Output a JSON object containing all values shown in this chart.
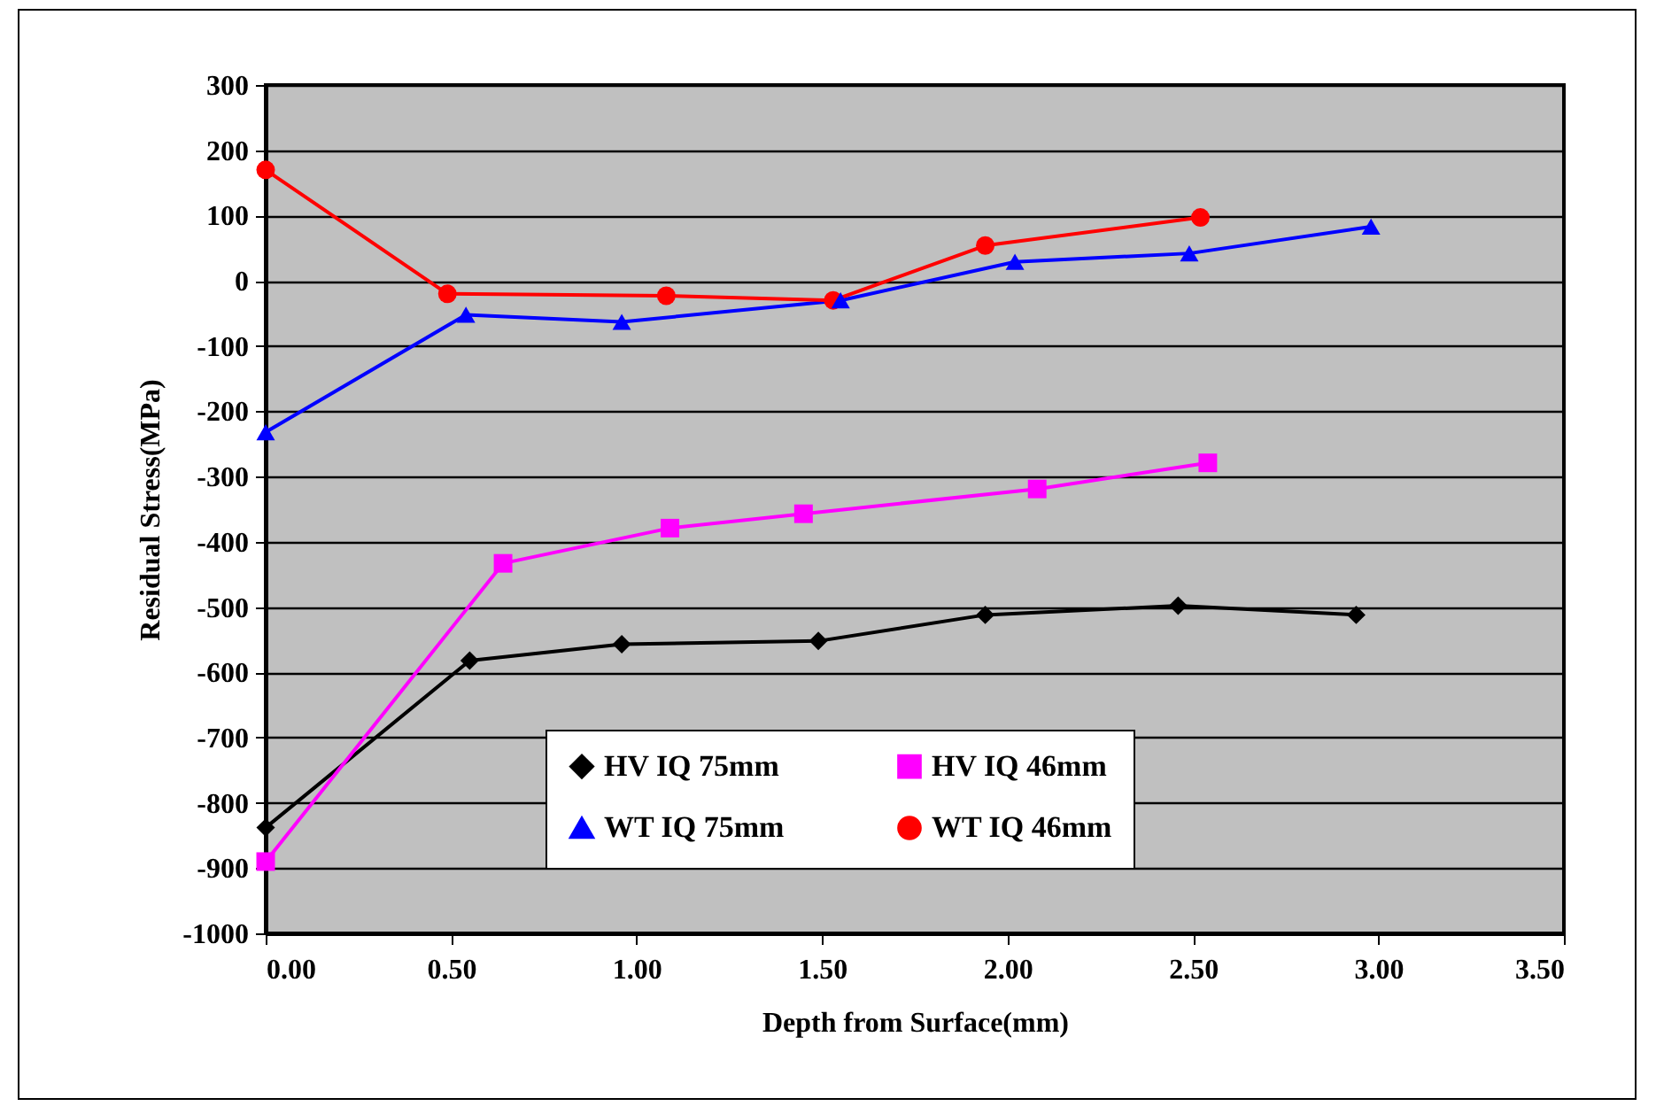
{
  "chart_data": {
    "type": "line",
    "xlabel": "Depth from Surface(mm)",
    "ylabel": "Residual Stress(MPa)",
    "xlim": [
      0,
      3.5
    ],
    "xticks": [
      {
        "value": 0,
        "label": "0.00"
      },
      {
        "value": 0.5,
        "label": "0.50"
      },
      {
        "value": 1,
        "label": "1.00"
      },
      {
        "value": 1.5,
        "label": "1.50"
      },
      {
        "value": 2,
        "label": "2.00"
      },
      {
        "value": 2.5,
        "label": "2.50"
      },
      {
        "value": 3,
        "label": "3.00"
      },
      {
        "value": 3.5,
        "label": "3.50"
      }
    ],
    "ylim": [
      -1000,
      300
    ],
    "yticks": [
      -1000,
      -900,
      -800,
      -700,
      -600,
      -500,
      -400,
      -300,
      -200,
      -100,
      0,
      100,
      200,
      300
    ],
    "grid": "y",
    "legend": "bottom",
    "line_style": "solid",
    "series": [
      {
        "name": "HV IQ 75mm",
        "color": "#000000",
        "marker": "diamond",
        "x": [
          0,
          0.55,
          0.96,
          1.49,
          1.94,
          2.46,
          2.94
        ],
        "values": [
          -838,
          -582,
          -557,
          -552,
          -512,
          -498,
          -512
        ]
      },
      {
        "name": "HV IQ 46mm",
        "color": "#ff00ff",
        "marker": "square",
        "x": [
          0,
          0.64,
          1.09,
          1.45,
          2.08,
          2.54
        ],
        "values": [
          -890,
          -433,
          -379,
          -357,
          -319,
          -279
        ]
      },
      {
        "name": "WT IQ 75mm",
        "color": "#0000ff",
        "marker": "triangle",
        "x": [
          0,
          0.54,
          0.96,
          1.55,
          2.02,
          2.49,
          2.98
        ],
        "values": [
          -232,
          -52,
          -63,
          -30,
          29,
          42,
          83
        ]
      },
      {
        "name": "WT IQ 46mm",
        "color": "#ff0000",
        "marker": "circle",
        "x": [
          0,
          0.49,
          1.08,
          1.53,
          1.94,
          2.52
        ],
        "values": [
          170,
          -20,
          -23,
          -30,
          54,
          97
        ]
      }
    ]
  }
}
